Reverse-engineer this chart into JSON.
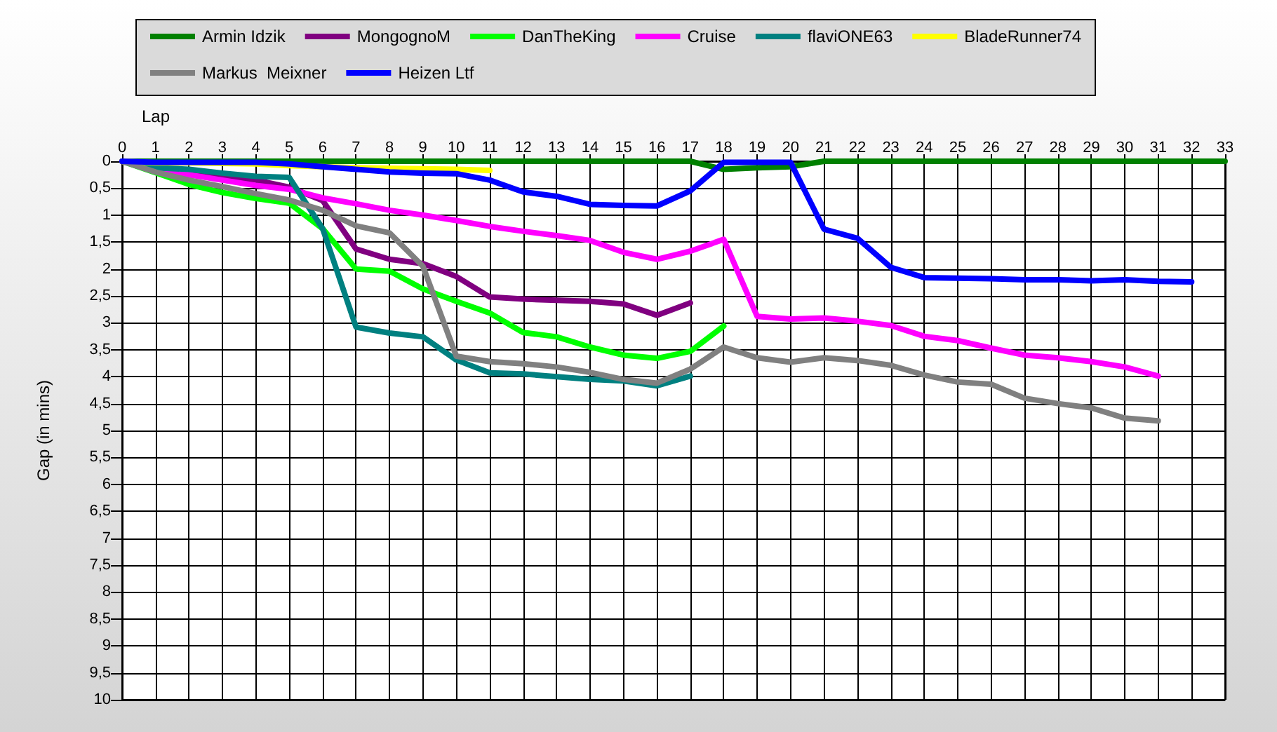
{
  "chart_data": {
    "type": "line",
    "xlabel": "Lap",
    "ylabel": "Gap (in mins)",
    "x": [
      0,
      1,
      2,
      3,
      4,
      5,
      6,
      7,
      8,
      9,
      10,
      11,
      12,
      13,
      14,
      15,
      16,
      17,
      18,
      19,
      20,
      21,
      22,
      23,
      24,
      25,
      26,
      27,
      28,
      29,
      30,
      31,
      32,
      33
    ],
    "xlim": [
      0,
      33
    ],
    "xticks": [
      0,
      1,
      2,
      3,
      4,
      5,
      6,
      7,
      8,
      9,
      10,
      11,
      12,
      13,
      14,
      15,
      16,
      17,
      18,
      19,
      20,
      21,
      22,
      23,
      24,
      25,
      26,
      27,
      28,
      29,
      30,
      31,
      32,
      33
    ],
    "ylim": [
      10,
      0
    ],
    "yticks": [
      0,
      {
        "value": 0.5,
        "label": "0,5"
      },
      1,
      {
        "value": 1.5,
        "label": "1,5"
      },
      2,
      {
        "value": 2.5,
        "label": "2,5"
      },
      3,
      {
        "value": 3.5,
        "label": "3,5"
      },
      4,
      {
        "value": 4.5,
        "label": "4,5"
      },
      5,
      {
        "value": 5.5,
        "label": "5,5"
      },
      6,
      {
        "value": 6.5,
        "label": "6,5"
      },
      7,
      {
        "value": 7.5,
        "label": "7,5"
      },
      8,
      {
        "value": 8.5,
        "label": "8,5"
      },
      9,
      {
        "value": 9.5,
        "label": "9,5"
      },
      10
    ],
    "grid": true,
    "legend": "top",
    "marker": "none",
    "line_style": "solid",
    "series": [
      {
        "name": "Armin Idzik",
        "color": "#008000",
        "values": [
          0,
          0,
          0,
          0,
          0,
          0,
          0,
          0,
          0,
          0,
          0,
          0,
          0,
          0,
          0,
          0,
          0,
          0,
          0.15,
          0.12,
          0.1,
          0,
          0,
          0,
          0,
          0,
          0,
          0,
          0,
          0,
          0,
          0,
          0,
          0
        ]
      },
      {
        "name": "MongognoM",
        "color": "#800080",
        "values": [
          0,
          0.15,
          0.25,
          0.3,
          0.35,
          0.48,
          0.73,
          1.63,
          1.82,
          1.9,
          2.14,
          2.52,
          2.56,
          2.58,
          2.6,
          2.65,
          2.86,
          2.63,
          null,
          null,
          null,
          null,
          null,
          null,
          null,
          null,
          null,
          null,
          null,
          null,
          null,
          null,
          null,
          null
        ]
      },
      {
        "name": "DanTheKing",
        "color": "#00ff00",
        "values": [
          0,
          0.21,
          0.43,
          0.58,
          0.69,
          0.78,
          1.25,
          2.0,
          2.04,
          2.37,
          2.6,
          2.82,
          3.18,
          3.26,
          3.45,
          3.6,
          3.66,
          3.53,
          3.06,
          null,
          null,
          null,
          null,
          null,
          null,
          null,
          null,
          null,
          null,
          null,
          null,
          null,
          null,
          null
        ]
      },
      {
        "name": "Cruise",
        "color": "#ff00ff",
        "values": [
          0,
          0.15,
          0.25,
          0.35,
          0.45,
          0.52,
          0.68,
          0.79,
          0.91,
          1.0,
          1.1,
          1.21,
          1.3,
          1.38,
          1.47,
          1.69,
          1.82,
          1.67,
          1.45,
          2.88,
          2.93,
          2.91,
          2.97,
          3.05,
          3.25,
          3.33,
          3.47,
          3.6,
          3.65,
          3.72,
          3.82,
          3.99,
          null,
          null
        ]
      },
      {
        "name": "flaviONE63",
        "color": "#008080",
        "values": [
          0,
          0.12,
          0.15,
          0.22,
          0.28,
          0.3,
          1.25,
          3.08,
          3.19,
          3.26,
          3.69,
          3.93,
          3.95,
          4.0,
          4.05,
          4.08,
          4.17,
          3.99,
          null,
          null,
          null,
          null,
          null,
          null,
          null,
          null,
          null,
          null,
          null,
          null,
          null,
          null,
          null,
          null
        ]
      },
      {
        "name": "BladeRunner74",
        "color": "#ffff00",
        "values": [
          0,
          0.03,
          0.03,
          0.04,
          0.05,
          0.08,
          0.1,
          0.12,
          0.13,
          0.14,
          0.15,
          0.17,
          null,
          null,
          null,
          null,
          null,
          null,
          null,
          null,
          null,
          null,
          null,
          null,
          null,
          null,
          null,
          null,
          null,
          null,
          null,
          null,
          null,
          null
        ]
      },
      {
        "name": "Markus  Meixner",
        "color": "#808080",
        "values": [
          0,
          0.2,
          0.35,
          0.47,
          0.6,
          0.72,
          0.91,
          1.2,
          1.33,
          1.95,
          3.62,
          3.72,
          3.76,
          3.82,
          3.92,
          4.05,
          4.12,
          3.86,
          3.45,
          3.65,
          3.73,
          3.65,
          3.7,
          3.79,
          3.97,
          4.1,
          4.14,
          4.4,
          4.5,
          4.58,
          4.77,
          4.82,
          null,
          null
        ]
      },
      {
        "name": "Heizen Ltf",
        "color": "#0000ff",
        "values": [
          0,
          0.02,
          0.02,
          0.02,
          0.02,
          0.05,
          0.1,
          0.15,
          0.2,
          0.22,
          0.23,
          0.35,
          0.57,
          0.65,
          0.8,
          0.82,
          0.83,
          0.55,
          0.02,
          0.02,
          0.02,
          1.26,
          1.43,
          1.97,
          2.16,
          2.17,
          2.18,
          2.2,
          2.2,
          2.22,
          2.2,
          2.23,
          2.24,
          null
        ]
      }
    ]
  }
}
